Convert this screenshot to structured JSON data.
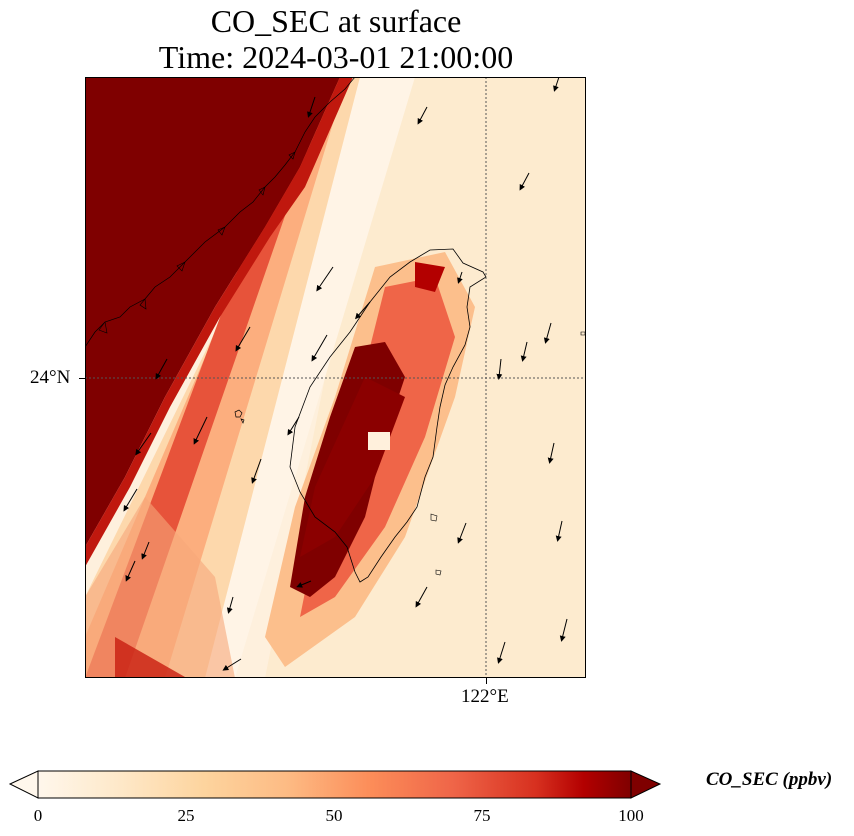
{
  "title": {
    "line1": "CO_SEC at surface",
    "line2": "Time: 2024-03-01 21:00:00"
  },
  "axes": {
    "lat_label": "24°N",
    "lon_label": "122°E"
  },
  "colorbar": {
    "title": "CO_SEC (ppbv)",
    "ticks": [
      "0",
      "25",
      "50",
      "75",
      "100"
    ],
    "min": 0,
    "max": 100,
    "colormap": "OrRd",
    "extend": "both"
  },
  "colors": {
    "max": "#7f0000",
    "high": "#b30000",
    "mid": "#ef6548",
    "low": "#fdd49e",
    "min": "#fff7ec"
  }
}
